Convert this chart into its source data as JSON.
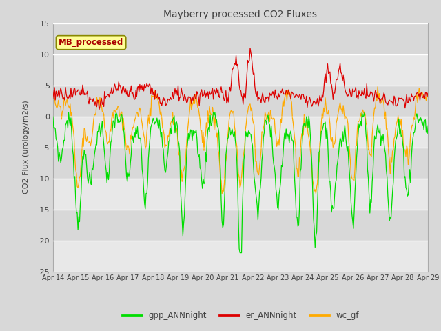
{
  "title": "Mayberry processed CO2 Fluxes",
  "ylabel": "CO2 Flux (urology/m2/s)",
  "ylim": [
    -25,
    15
  ],
  "yticks": [
    -25,
    -20,
    -15,
    -10,
    -5,
    0,
    5,
    10,
    15
  ],
  "xlabels": [
    "Apr 14",
    "Apr 15",
    "Apr 16",
    "Apr 17",
    "Apr 18",
    "Apr 19",
    "Apr 20",
    "Apr 21",
    "Apr 22",
    "Apr 23",
    "Apr 24",
    "Apr 25",
    "Apr 26",
    "Apr 27",
    "Apr 28",
    "Apr 29"
  ],
  "legend_labels": [
    "gpp_ANNnight",
    "er_ANNnight",
    "wc_gf"
  ],
  "legend_colors": [
    "#00dd00",
    "#dd0000",
    "#ffaa00"
  ],
  "inset_label": "MB_processed",
  "inset_text_color": "#aa0000",
  "inset_box_color": "#ffff99",
  "inset_edge_color": "#888800",
  "background_color": "#d8d8d8",
  "plot_bg_color_light": "#e8e8e8",
  "plot_bg_color_dark": "#d0d0d0",
  "title_color": "#404040",
  "axis_label_color": "#404040",
  "n_points": 480,
  "seed": 7
}
